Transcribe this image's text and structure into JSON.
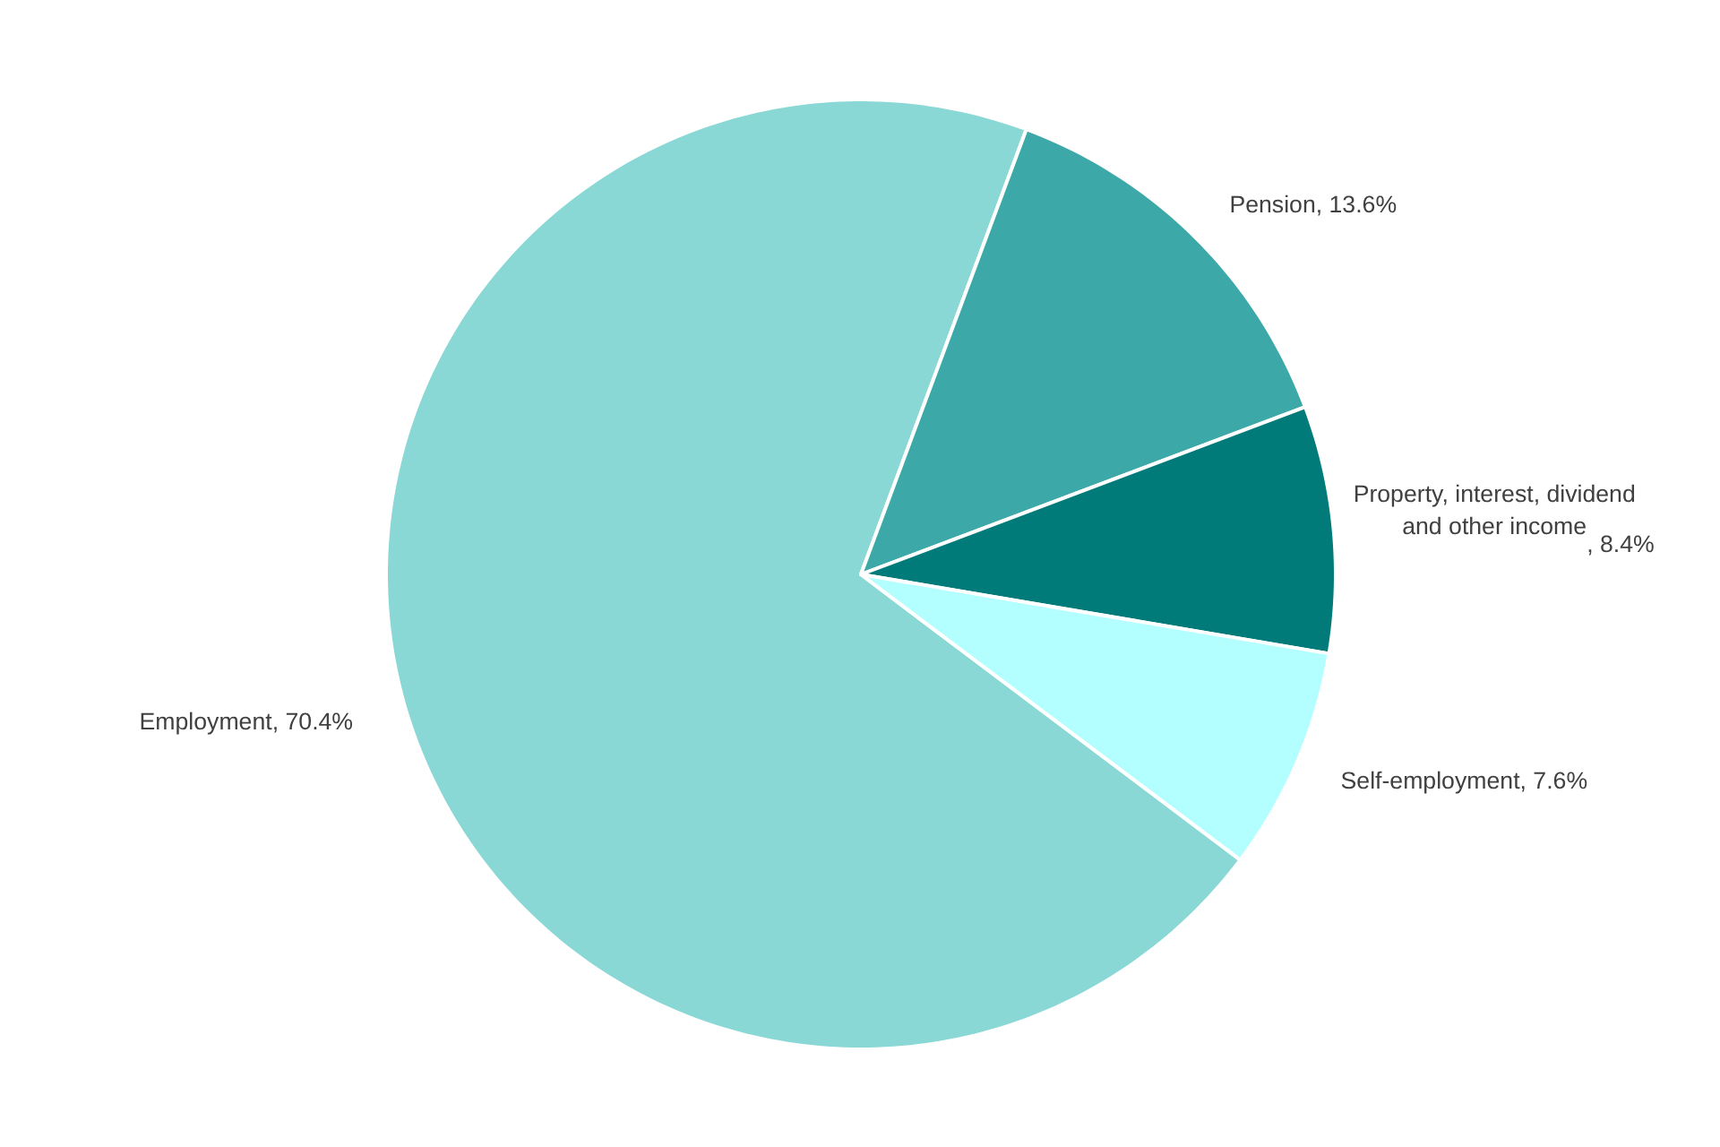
{
  "chart_data": {
    "type": "pie",
    "categories": [
      "Employment",
      "Pension",
      "Property, interest, dividend and other income",
      "Self-employment"
    ],
    "values": [
      70.4,
      13.6,
      8.4,
      7.6
    ],
    "value_labels": [
      ",  70.4%",
      ",  13.6%",
      ", 8.4%",
      ",  7.6%"
    ],
    "colors": [
      "#8ad8d6",
      "#3ca9a8",
      "#007b79",
      "#b3ffff"
    ],
    "legend": false
  }
}
